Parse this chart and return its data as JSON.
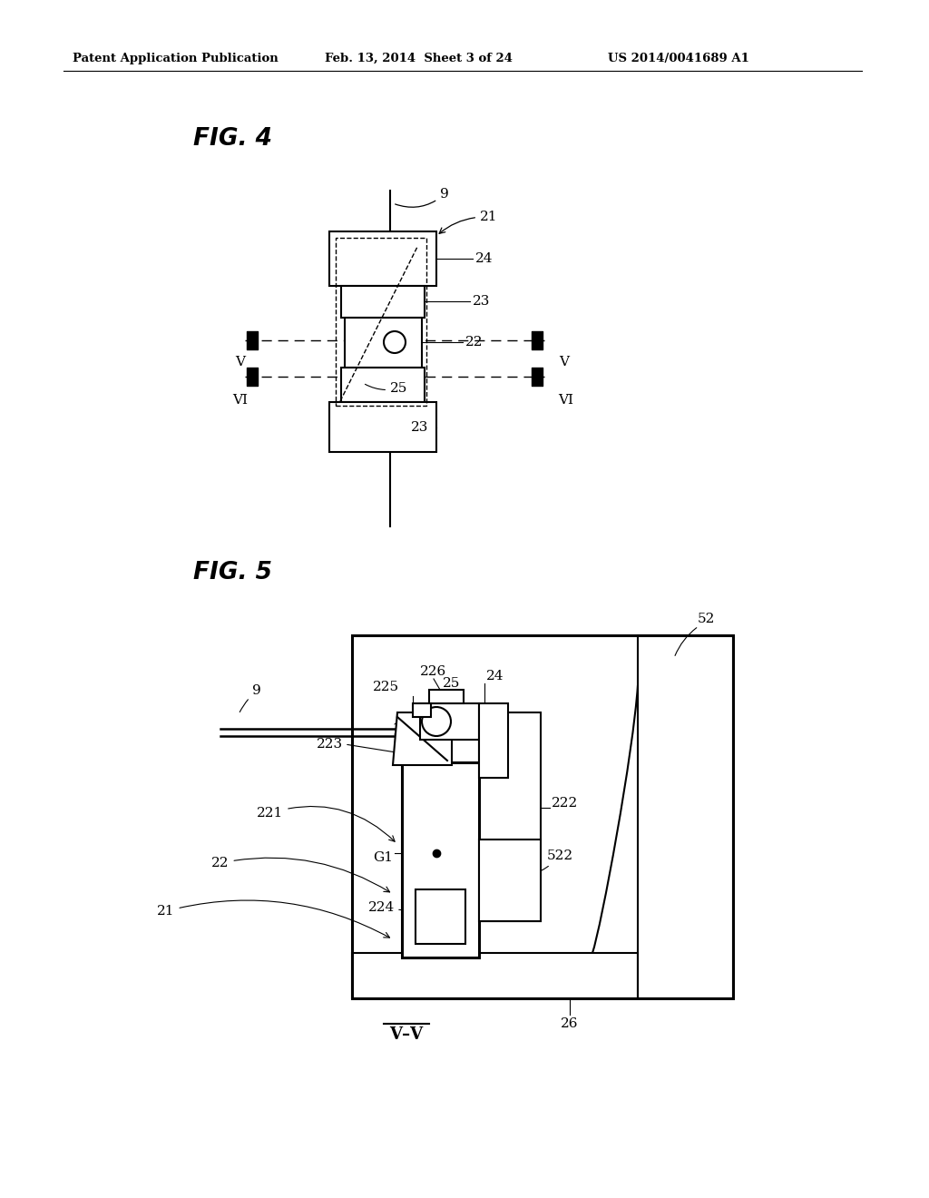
{
  "bg_color": "#ffffff",
  "header_left": "Patent Application Publication",
  "header_center": "Feb. 13, 2014  Sheet 3 of 24",
  "header_right": "US 2014/0041689 A1",
  "fig4_label": "FIG. 4",
  "fig5_label": "FIG. 5",
  "footer_label": "V–V"
}
